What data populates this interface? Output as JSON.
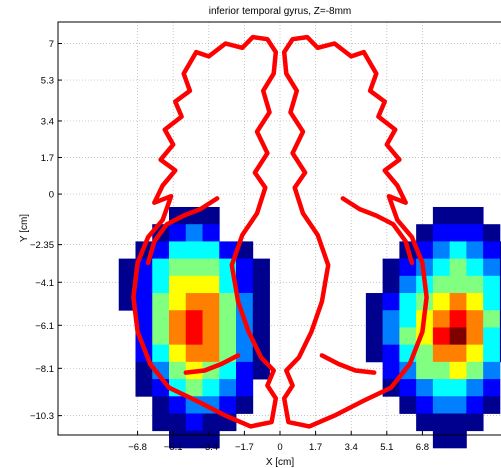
{
  "chart_data": {
    "type": "heatmap",
    "title": "inferior temporal gyrus, Z=-8mm",
    "xlabel": "X [cm]",
    "ylabel": "Y [cm]",
    "xlim": [
      -10.6,
      10.6
    ],
    "ylim": [
      -11.2,
      8.0
    ],
    "grid": true,
    "x_ticks": [
      -6.8,
      -5.1,
      -3.4,
      -1.7,
      0,
      1.7,
      3.4,
      5.1,
      6.8
    ],
    "x_tick_labels": [
      "−6.8",
      "−5.1",
      "−3.4",
      "−1.7",
      "0",
      "1.7",
      "3.4",
      "5.1",
      "6.8"
    ],
    "y_ticks": [
      7,
      5.3,
      3.4,
      1.7,
      0,
      -2.35,
      -4.1,
      -6.1,
      -8.1,
      -10.3
    ],
    "y_tick_labels": [
      "7",
      "5.3",
      "3.4",
      "1.7",
      "0",
      "−2.35",
      "−4.1",
      "−6.1",
      "−8.1",
      "−10.3"
    ],
    "cell_size_cm": 0.8,
    "colormap": [
      "#00008f",
      "#0000ff",
      "#0080ff",
      "#00ffff",
      "#80ff80",
      "#ffff00",
      "#ff8000",
      "#ff0000",
      "#800000"
    ],
    "outline_color": "#ff0000",
    "clusters": [
      {
        "x0": -7.7,
        "y_top": -0.6,
        "rows": [
          [
            null,
            null,
            null,
            0.08,
            0.08,
            0.08,
            null,
            null,
            null,
            null,
            null
          ],
          [
            null,
            null,
            0.08,
            0.2,
            0.25,
            0.2,
            null,
            null,
            null,
            null,
            null
          ],
          [
            null,
            0.08,
            0.2,
            0.35,
            0.4,
            0.35,
            0.2,
            0.08,
            null,
            null,
            null
          ],
          [
            0.08,
            0.2,
            0.35,
            0.5,
            0.55,
            0.5,
            0.35,
            0.2,
            0.08,
            null,
            null
          ],
          [
            0.08,
            0.2,
            0.4,
            0.6,
            0.65,
            0.6,
            0.4,
            0.2,
            0.08,
            null,
            null
          ],
          [
            0.08,
            0.2,
            0.45,
            0.65,
            0.7,
            0.7,
            0.5,
            0.25,
            0.08,
            null,
            null
          ],
          [
            null,
            0.2,
            0.45,
            0.7,
            0.8,
            0.75,
            0.55,
            0.3,
            0.08,
            null,
            null
          ],
          [
            null,
            0.2,
            0.45,
            0.7,
            0.8,
            0.75,
            0.55,
            0.3,
            0.08,
            null,
            null
          ],
          [
            null,
            0.15,
            0.4,
            0.65,
            0.75,
            0.7,
            0.5,
            0.25,
            0.08,
            null,
            null
          ],
          [
            null,
            0.1,
            0.3,
            0.5,
            0.6,
            0.55,
            0.4,
            0.2,
            0.08,
            null,
            null
          ],
          [
            null,
            0.08,
            0.2,
            0.35,
            0.45,
            0.4,
            0.3,
            0.15,
            null,
            null,
            null
          ],
          [
            null,
            null,
            0.1,
            0.2,
            0.3,
            0.25,
            0.15,
            0.08,
            null,
            null,
            null
          ],
          [
            null,
            null,
            0.08,
            0.1,
            0.15,
            0.1,
            0.08,
            null,
            null,
            null,
            null
          ],
          [
            null,
            null,
            null,
            0.08,
            0.08,
            0.08,
            null,
            null,
            null,
            null,
            null
          ]
        ]
      },
      {
        "x0": 2.5,
        "y_top": -0.6,
        "rows": [
          [
            null,
            null,
            null,
            null,
            null,
            null,
            0.08,
            0.08,
            0.08,
            null,
            null
          ],
          [
            null,
            null,
            null,
            null,
            null,
            0.08,
            0.15,
            0.2,
            0.15,
            0.08,
            null
          ],
          [
            null,
            null,
            null,
            null,
            0.08,
            0.2,
            0.3,
            0.35,
            0.3,
            0.2,
            0.08
          ],
          [
            null,
            null,
            null,
            0.08,
            0.2,
            0.3,
            0.4,
            0.45,
            0.4,
            0.3,
            0.08
          ],
          [
            null,
            null,
            null,
            0.08,
            0.25,
            0.4,
            0.5,
            0.55,
            0.5,
            0.35,
            0.08
          ],
          [
            null,
            null,
            0.08,
            0.2,
            0.35,
            0.5,
            0.65,
            0.7,
            0.6,
            0.4,
            0.08
          ],
          [
            null,
            null,
            0.08,
            0.25,
            0.4,
            0.6,
            0.75,
            0.85,
            0.7,
            0.45,
            0.08
          ],
          [
            null,
            null,
            0.08,
            0.25,
            0.45,
            0.65,
            0.85,
            0.9,
            0.75,
            0.4,
            0.08
          ],
          [
            null,
            null,
            0.08,
            0.2,
            0.35,
            0.55,
            0.7,
            0.75,
            0.6,
            0.35,
            0.08
          ],
          [
            null,
            null,
            null,
            0.15,
            0.3,
            0.45,
            0.55,
            0.6,
            0.45,
            0.25,
            null
          ],
          [
            null,
            null,
            null,
            0.08,
            0.2,
            0.3,
            0.4,
            0.4,
            0.3,
            0.15,
            null
          ],
          [
            null,
            null,
            null,
            null,
            0.08,
            0.2,
            0.25,
            0.25,
            0.15,
            0.08,
            null
          ],
          [
            null,
            null,
            null,
            null,
            null,
            0.08,
            0.1,
            0.1,
            0.08,
            null,
            null
          ],
          [
            null,
            null,
            null,
            null,
            null,
            null,
            0.08,
            0.08,
            null,
            null,
            null
          ]
        ]
      }
    ],
    "outline_segments": [
      {
        "name": "left-hemisphere-outline",
        "points": [
          [
            -0.2,
            6.6
          ],
          [
            -0.6,
            7.2
          ],
          [
            -1.3,
            7.3
          ],
          [
            -1.8,
            6.8
          ],
          [
            -2.6,
            7.0
          ],
          [
            -3.4,
            6.4
          ],
          [
            -4.0,
            6.6
          ],
          [
            -4.6,
            5.6
          ],
          [
            -4.3,
            4.8
          ],
          [
            -5.0,
            4.3
          ],
          [
            -4.7,
            3.6
          ],
          [
            -5.5,
            3.0
          ],
          [
            -5.1,
            2.3
          ],
          [
            -5.7,
            1.6
          ],
          [
            -5.0,
            1.1
          ],
          [
            -5.6,
            0.4
          ],
          [
            -6.0,
            -0.4
          ],
          [
            -5.2,
            -0.1
          ],
          [
            -5.6,
            -1.2
          ],
          [
            -6.3,
            -2.0
          ],
          [
            -6.8,
            -3.2
          ],
          [
            -7.0,
            -4.8
          ],
          [
            -6.8,
            -6.4
          ],
          [
            -6.2,
            -7.9
          ],
          [
            -5.3,
            -9.0
          ],
          [
            -4.0,
            -9.6
          ],
          [
            -2.6,
            -10.3
          ],
          [
            -1.4,
            -10.8
          ],
          [
            -0.4,
            -10.6
          ],
          [
            -0.2,
            -9.5
          ],
          [
            -0.6,
            -8.9
          ],
          [
            -0.3,
            -8.2
          ],
          [
            -0.9,
            -7.6
          ],
          [
            -1.5,
            -6.4
          ],
          [
            -2.0,
            -5.0
          ],
          [
            -2.3,
            -3.3
          ],
          [
            -1.8,
            -1.9
          ],
          [
            -1.1,
            -0.9
          ],
          [
            -0.7,
            0.3
          ],
          [
            -1.2,
            1.0
          ],
          [
            -0.6,
            1.9
          ],
          [
            -1.1,
            2.9
          ],
          [
            -0.5,
            3.8
          ],
          [
            -0.8,
            4.8
          ],
          [
            -0.3,
            5.6
          ],
          [
            -0.2,
            6.6
          ]
        ]
      },
      {
        "name": "right-hemisphere-outline",
        "points": [
          [
            0.2,
            6.6
          ],
          [
            0.6,
            7.2
          ],
          [
            1.3,
            7.3
          ],
          [
            1.8,
            6.8
          ],
          [
            2.6,
            7.0
          ],
          [
            3.4,
            6.4
          ],
          [
            4.0,
            6.6
          ],
          [
            4.6,
            5.6
          ],
          [
            4.3,
            4.8
          ],
          [
            5.0,
            4.3
          ],
          [
            4.7,
            3.6
          ],
          [
            5.5,
            3.0
          ],
          [
            5.1,
            2.3
          ],
          [
            5.7,
            1.6
          ],
          [
            5.0,
            1.1
          ],
          [
            5.6,
            0.4
          ],
          [
            6.0,
            -0.4
          ],
          [
            5.2,
            -0.1
          ],
          [
            5.6,
            -1.2
          ],
          [
            6.3,
            -2.0
          ],
          [
            6.8,
            -3.2
          ],
          [
            7.0,
            -4.8
          ],
          [
            6.8,
            -6.4
          ],
          [
            6.2,
            -7.9
          ],
          [
            5.3,
            -9.0
          ],
          [
            4.0,
            -9.6
          ],
          [
            2.6,
            -10.3
          ],
          [
            1.4,
            -10.8
          ],
          [
            0.4,
            -10.6
          ],
          [
            0.2,
            -9.5
          ],
          [
            0.6,
            -8.9
          ],
          [
            0.3,
            -8.2
          ],
          [
            0.9,
            -7.6
          ],
          [
            1.5,
            -6.4
          ],
          [
            2.0,
            -5.0
          ],
          [
            2.3,
            -3.3
          ],
          [
            1.8,
            -1.9
          ],
          [
            1.1,
            -0.9
          ],
          [
            0.7,
            0.3
          ],
          [
            1.2,
            1.0
          ],
          [
            0.6,
            1.9
          ],
          [
            1.1,
            2.9
          ],
          [
            0.5,
            3.8
          ],
          [
            0.8,
            4.8
          ],
          [
            0.3,
            5.6
          ],
          [
            0.2,
            6.6
          ]
        ]
      },
      {
        "name": "left-temporal-lobe-outline",
        "points": [
          [
            -3.0,
            -0.2
          ],
          [
            -3.8,
            -0.7
          ],
          [
            -4.6,
            -1.0
          ],
          [
            -5.4,
            -1.4
          ],
          [
            -6.0,
            -2.2
          ],
          [
            -6.3,
            -3.2
          ]
        ]
      },
      {
        "name": "right-temporal-lobe-outline",
        "points": [
          [
            3.0,
            -0.2
          ],
          [
            3.8,
            -0.7
          ],
          [
            4.6,
            -1.0
          ],
          [
            5.4,
            -1.4
          ],
          [
            6.0,
            -2.2
          ],
          [
            6.3,
            -3.2
          ]
        ]
      },
      {
        "name": "left-lower-sulcus-outline",
        "points": [
          [
            -2.0,
            -7.5
          ],
          [
            -2.8,
            -7.9
          ],
          [
            -3.6,
            -8.2
          ],
          [
            -4.5,
            -8.3
          ]
        ]
      },
      {
        "name": "right-lower-sulcus-outline",
        "points": [
          [
            2.0,
            -7.5
          ],
          [
            2.8,
            -7.9
          ],
          [
            3.6,
            -8.2
          ],
          [
            4.5,
            -8.3
          ]
        ]
      }
    ]
  }
}
